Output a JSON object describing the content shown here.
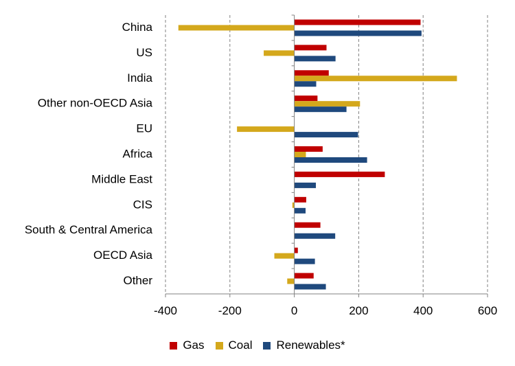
{
  "chart_data": {
    "type": "bar",
    "orientation": "horizontal",
    "categories": [
      "China",
      "US",
      "India",
      "Other non-OECD Asia",
      "EU",
      "Africa",
      "Middle East",
      "CIS",
      "South & Central America",
      "OECD Asia",
      "Other"
    ],
    "series": [
      {
        "name": "Gas",
        "color": "#c00000",
        "values": [
          392,
          100,
          107,
          72,
          0,
          88,
          281,
          37,
          81,
          11,
          60
        ]
      },
      {
        "name": "Coal",
        "color": "#d4a81c",
        "values": [
          -360,
          -95,
          505,
          204,
          -178,
          36,
          0,
          -6,
          0,
          -62,
          -22
        ]
      },
      {
        "name": "Renewables*",
        "color": "#1f497d",
        "values": [
          395,
          128,
          68,
          162,
          198,
          226,
          67,
          35,
          127,
          64,
          98
        ]
      }
    ],
    "xlim": [
      -400,
      600
    ],
    "xticks": [
      -400,
      -200,
      0,
      200,
      400,
      600
    ],
    "grid": "vertical-dashed",
    "legend_position": "bottom"
  }
}
